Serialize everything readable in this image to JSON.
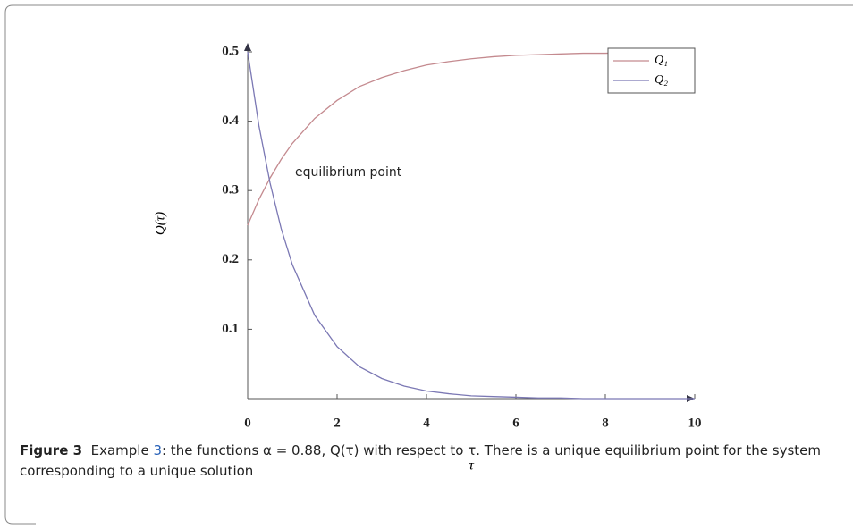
{
  "chart_data": {
    "type": "line",
    "ylabel": "Q(τ)",
    "xlabel": "τ",
    "annotation": "equilibrium point",
    "x": [
      0,
      0.25,
      0.5,
      0.75,
      1,
      1.5,
      2,
      2.5,
      3,
      3.5,
      4,
      4.5,
      5,
      5.5,
      6,
      6.5,
      7,
      7.5,
      8,
      8.5,
      9,
      9.5,
      10
    ],
    "series": [
      {
        "name": "Q₁",
        "color": "#c48a8f",
        "values": [
          0.25,
          0.287,
          0.318,
          0.345,
          0.368,
          0.404,
          0.43,
          0.45,
          0.463,
          0.473,
          0.481,
          0.486,
          0.49,
          0.493,
          0.495,
          0.496,
          0.497,
          0.498,
          0.498,
          0.499,
          0.499,
          0.499,
          0.5
        ]
      },
      {
        "name": "Q₂",
        "color": "#7b78b4",
        "values": [
          0.5,
          0.394,
          0.311,
          0.245,
          0.193,
          0.12,
          0.075,
          0.046,
          0.029,
          0.018,
          0.011,
          0.007,
          0.004,
          0.003,
          0.002,
          0.001,
          0.001,
          0,
          0,
          0,
          0,
          0,
          0
        ]
      }
    ],
    "xlim": [
      0,
      10
    ],
    "xticks": [
      0,
      2,
      4,
      6,
      8,
      10
    ],
    "ylim": [
      0,
      0.5
    ],
    "yticks": [
      0.1,
      0.2,
      0.3,
      0.4,
      0.5
    ],
    "legend": "top-right"
  },
  "caption": {
    "label": "Figure 3",
    "before": "Example ",
    "ref": "3",
    "after": ": the functions α = 0.88, Q(τ) with respect to τ. There is a unique equilibrium point for the system corresponding to a unique solution"
  }
}
